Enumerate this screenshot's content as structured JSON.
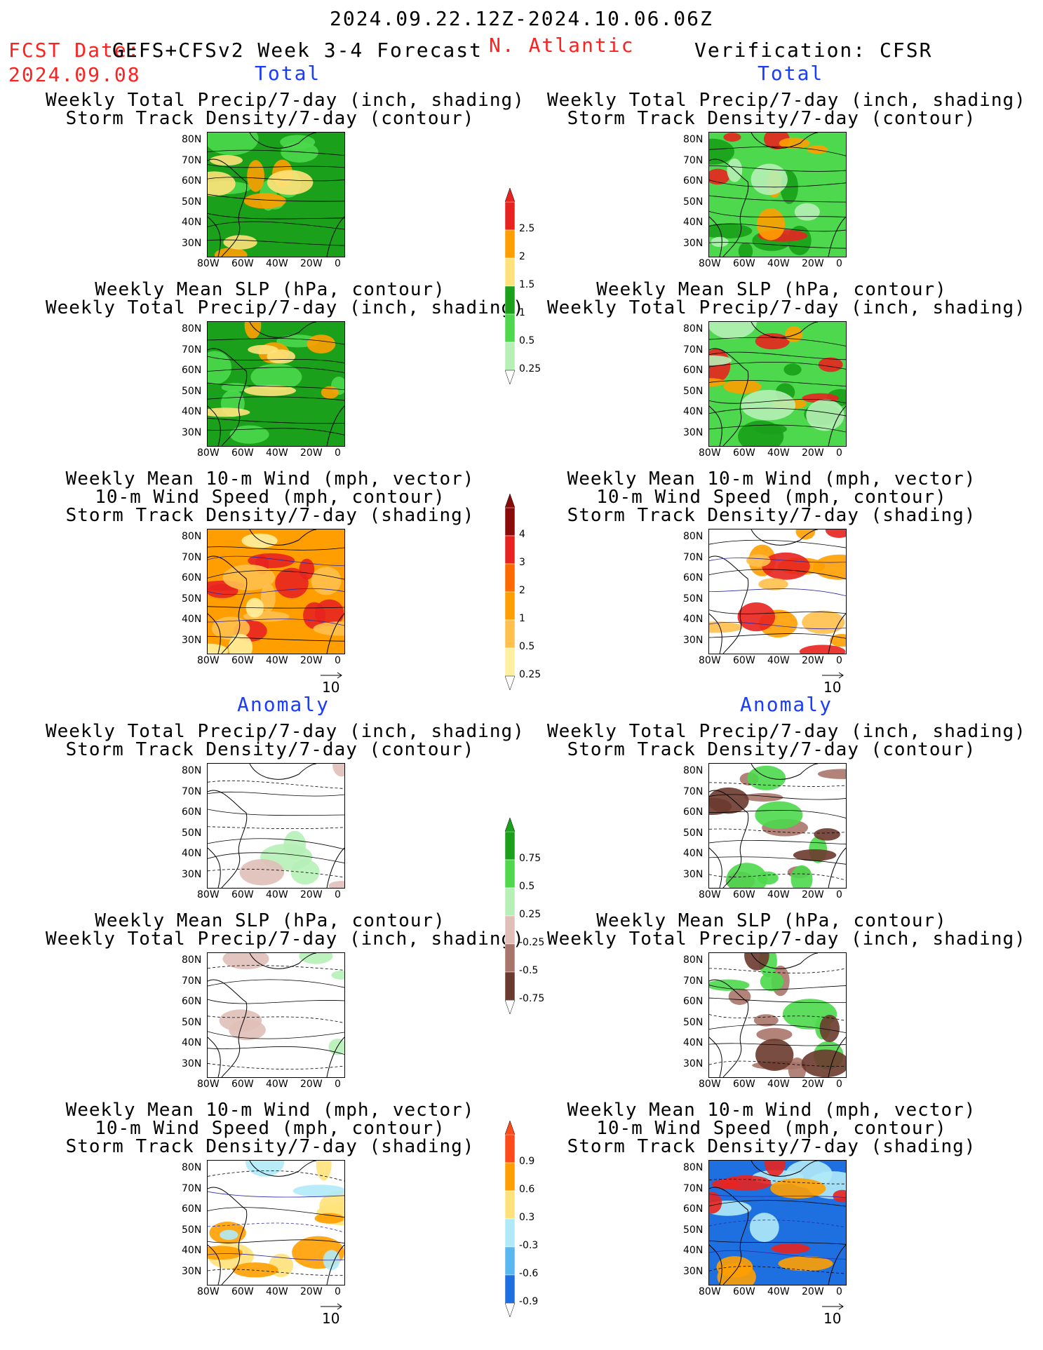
{
  "header": {
    "date_range": "2024.09.22.12Z-2024.10.06.06Z",
    "fcst_label": "FCST Date:",
    "model": "GEFS+CFSv2 Week 3-4 Forecast",
    "region": "N. Atlantic",
    "fcst_date": "2024.09.08",
    "verification": "Verification: CFSR"
  },
  "sections": {
    "total": "Total",
    "anomaly": "Anomaly"
  },
  "panel_titles": {
    "precip_storm": [
      "Weekly Total Precip/7-day (inch, shading)",
      "Storm Track Density/7-day (contour)"
    ],
    "slp_precip": [
      "Weekly Mean SLP (hPa, contour)",
      "Weekly Total Precip/7-day (inch, shading)"
    ],
    "wind_storm": [
      "Weekly Mean 10-m Wind (mph, vector)",
      "10-m Wind Speed (mph, contour)",
      "Storm Track Density/7-day (shading)"
    ]
  },
  "axes": {
    "lat_ticks": [
      "80N",
      "70N",
      "60N",
      "50N",
      "40N",
      "30N"
    ],
    "lon_ticks": [
      "80W",
      "60W",
      "40W",
      "20W",
      "0"
    ]
  },
  "vector_ref": "10",
  "colorbars": {
    "precip_total": {
      "labels": [
        "2.5",
        "2",
        "1.5",
        "1",
        "0.5",
        "0.25"
      ],
      "colors": [
        "#e8231f",
        "#ff9e00",
        "#ffe27a",
        "#1aa01a",
        "#4dd84d",
        "#b6f0b6"
      ]
    },
    "storm_total": {
      "labels": [
        "4",
        "3",
        "2",
        "1",
        "0.5",
        "0.25"
      ],
      "colors": [
        "#8b0a0a",
        "#e8231f",
        "#ff6a00",
        "#ff9e00",
        "#ffc04d",
        "#fff0a0"
      ]
    },
    "precip_anom": {
      "labels": [
        "0.75",
        "0.5",
        "0.25",
        "-0.25",
        "-0.5",
        "-0.75"
      ],
      "colors": [
        "#1aa01a",
        "#4dd84d",
        "#b6f0b6",
        "#e0bfb8",
        "#a8756a",
        "#6b3a2e"
      ]
    },
    "storm_anom": {
      "labels": [
        "0.9",
        "0.6",
        "0.3",
        "-0.3",
        "-0.6",
        "-0.9"
      ],
      "colors": [
        "#ff4a1a",
        "#ff9e00",
        "#ffe27a",
        "#b0eaf8",
        "#5ab8f0",
        "#1e6fe0"
      ]
    }
  }
}
